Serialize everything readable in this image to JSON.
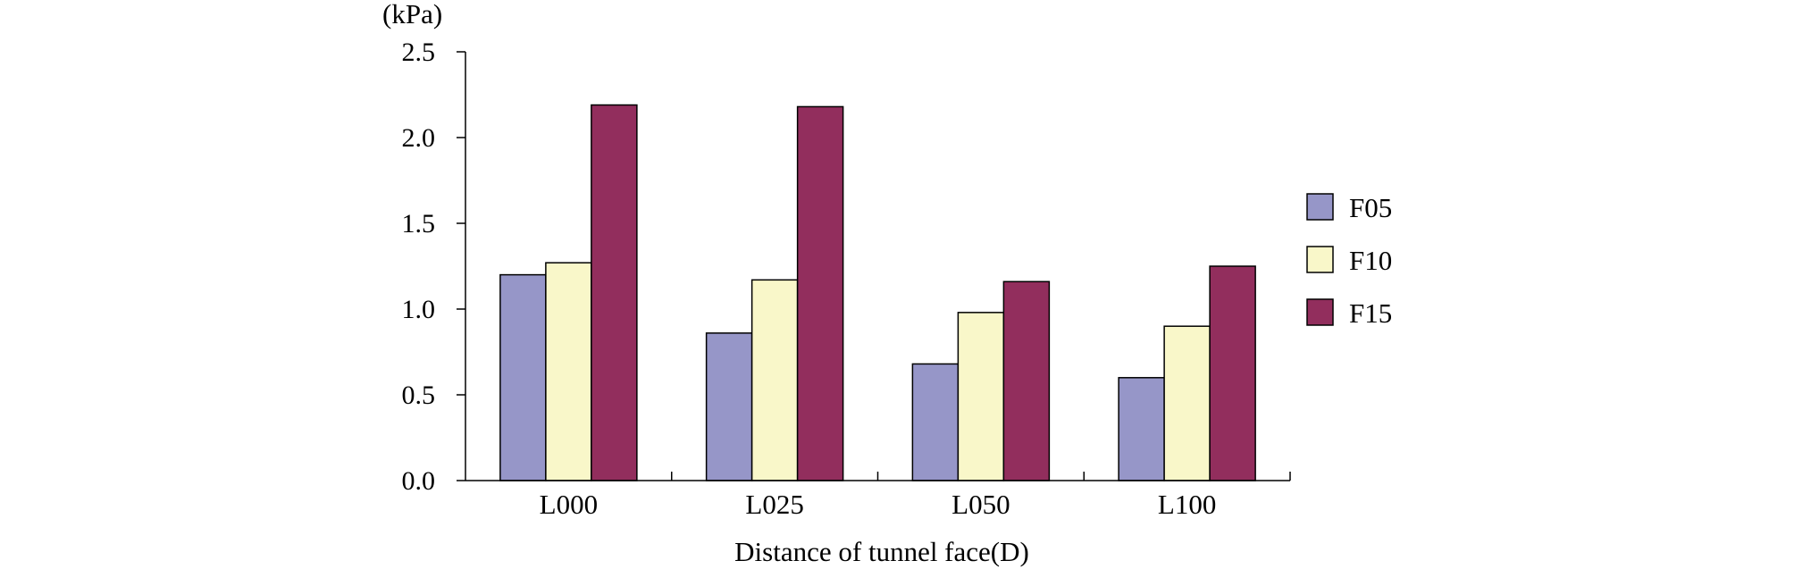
{
  "chart_data": {
    "type": "bar",
    "title": "",
    "xlabel": "Distance of tunnel face(D)",
    "ylabel": "(kPa)",
    "ylim": [
      0,
      2.5
    ],
    "yticks": [
      "0.0",
      "0.5",
      "1.0",
      "1.5",
      "2.0",
      "2.5"
    ],
    "categories": [
      "L000",
      "L025",
      "L050",
      "L100"
    ],
    "series": [
      {
        "name": "F05",
        "color": "#9696c8",
        "values": [
          1.2,
          0.86,
          0.68,
          0.6
        ]
      },
      {
        "name": "F10",
        "color": "#f9f7c9",
        "values": [
          1.27,
          1.17,
          0.98,
          0.9
        ]
      },
      {
        "name": "F15",
        "color": "#922e5d",
        "values": [
          2.19,
          2.18,
          1.16,
          1.25
        ]
      }
    ],
    "legend_position": "right",
    "grid": false
  }
}
